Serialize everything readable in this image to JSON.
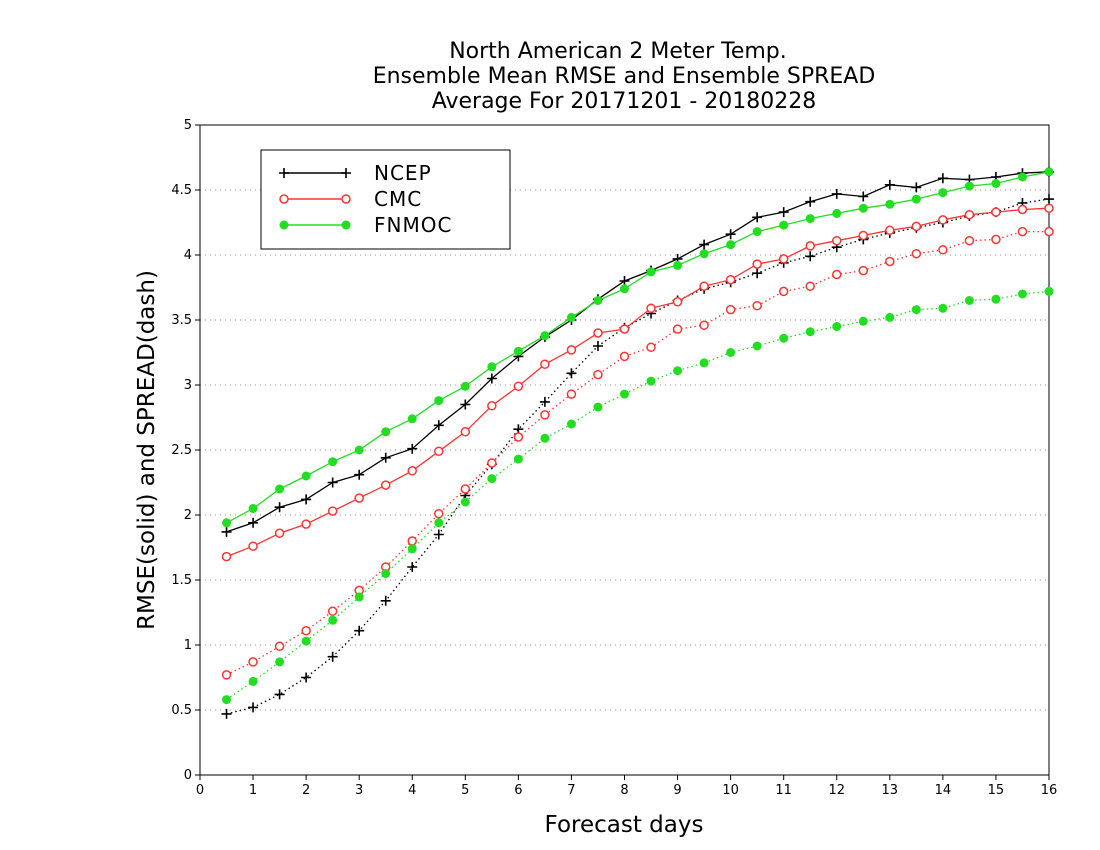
{
  "chart_data": {
    "type": "line",
    "title_lines": [
      "North American 2 Meter Temp.",
      "Ensemble Mean RMSE and Ensemble SPREAD",
      "Average For 20171201 - 20180228"
    ],
    "xlabel": "Forecast days",
    "ylabel": "RMSE(solid) and SPREAD(dash)",
    "xlim": [
      0,
      16
    ],
    "ylim": [
      0,
      5
    ],
    "x_ticks": [
      "0",
      "1",
      "2",
      "3",
      "4",
      "5",
      "6",
      "7",
      "8",
      "9",
      "10",
      "11",
      "12",
      "13",
      "14",
      "15",
      "16"
    ],
    "y_ticks": [
      "0",
      "0.5",
      "1",
      "1.5",
      "2",
      "2.5",
      "3",
      "3.5",
      "4",
      "4.5",
      "5"
    ],
    "y_grid": true,
    "legend_position": "top-left",
    "x": [
      0.5,
      1,
      1.5,
      2,
      2.5,
      3,
      3.5,
      4,
      4.5,
      5,
      5.5,
      6,
      6.5,
      7,
      7.5,
      8,
      8.5,
      9,
      9.5,
      10,
      10.5,
      11,
      11.5,
      12,
      12.5,
      13,
      13.5,
      14,
      14.5,
      15,
      15.5,
      16
    ],
    "series": [
      {
        "name": "NCEP",
        "color": "#000000",
        "marker": "plus",
        "rmse": [
          1.87,
          1.94,
          2.06,
          2.12,
          2.25,
          2.31,
          2.44,
          2.51,
          2.69,
          2.85,
          3.05,
          3.22,
          3.37,
          3.5,
          3.66,
          3.8,
          3.88,
          3.97,
          4.08,
          4.16,
          4.29,
          4.33,
          4.41,
          4.47,
          4.45,
          4.54,
          4.52,
          4.59,
          4.58,
          4.6,
          4.63,
          4.64
        ],
        "spread": [
          0.47,
          0.52,
          0.62,
          0.75,
          0.91,
          1.11,
          1.34,
          1.6,
          1.85,
          2.15,
          2.39,
          2.66,
          2.87,
          3.09,
          3.3,
          3.44,
          3.55,
          3.65,
          3.74,
          3.79,
          3.86,
          3.94,
          3.99,
          4.06,
          4.12,
          4.17,
          4.21,
          4.25,
          4.3,
          4.33,
          4.4,
          4.43
        ]
      },
      {
        "name": "CMC",
        "color": "#ff3333",
        "marker": "circle-open",
        "rmse": [
          1.68,
          1.76,
          1.86,
          1.93,
          2.03,
          2.13,
          2.23,
          2.34,
          2.49,
          2.64,
          2.84,
          2.99,
          3.16,
          3.27,
          3.4,
          3.43,
          3.59,
          3.64,
          3.76,
          3.81,
          3.93,
          3.97,
          4.07,
          4.11,
          4.15,
          4.19,
          4.22,
          4.27,
          4.31,
          4.33,
          4.35,
          4.36
        ],
        "spread": [
          0.77,
          0.87,
          0.99,
          1.11,
          1.26,
          1.42,
          1.6,
          1.8,
          2.01,
          2.2,
          2.4,
          2.6,
          2.77,
          2.93,
          3.08,
          3.22,
          3.29,
          3.43,
          3.46,
          3.58,
          3.61,
          3.72,
          3.76,
          3.85,
          3.88,
          3.95,
          4.01,
          4.04,
          4.11,
          4.12,
          4.18,
          4.18
        ]
      },
      {
        "name": "FNMOC",
        "color": "#22dd22",
        "marker": "circle-filled",
        "rmse": [
          1.94,
          2.05,
          2.2,
          2.3,
          2.41,
          2.5,
          2.64,
          2.74,
          2.88,
          2.99,
          3.14,
          3.26,
          3.38,
          3.52,
          3.65,
          3.74,
          3.87,
          3.92,
          4.01,
          4.08,
          4.18,
          4.23,
          4.28,
          4.32,
          4.36,
          4.39,
          4.43,
          4.48,
          4.53,
          4.55,
          4.6,
          4.64
        ],
        "spread": [
          0.58,
          0.72,
          0.87,
          1.03,
          1.19,
          1.37,
          1.55,
          1.74,
          1.94,
          2.1,
          2.28,
          2.43,
          2.59,
          2.7,
          2.83,
          2.93,
          3.03,
          3.11,
          3.17,
          3.25,
          3.3,
          3.36,
          3.41,
          3.45,
          3.49,
          3.52,
          3.58,
          3.59,
          3.65,
          3.66,
          3.7,
          3.72
        ]
      }
    ]
  }
}
